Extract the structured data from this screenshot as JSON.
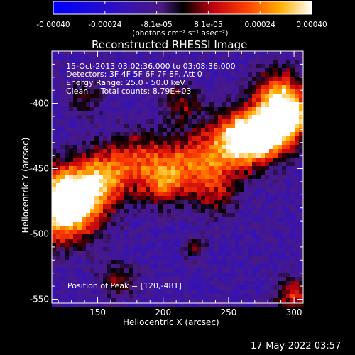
{
  "colorbar": {
    "tick_labels": [
      "-0.00040",
      "-0.00024",
      "-8.1e-05",
      "8.1e-05",
      "0.00024",
      "0.00040"
    ],
    "unit_label": "(photons cm⁻² s⁻¹ asec⁻²)",
    "range": [
      -0.0004,
      0.0004
    ]
  },
  "chart_data": {
    "type": "heatmap",
    "title": "Reconstructed RHESSI Image",
    "xlabel": "Heliocentric X (arcsec)",
    "ylabel": "Heliocentric Y (arcsec)",
    "xlim": [
      115,
      307
    ],
    "ylim": [
      -553,
      -360
    ],
    "x_ticks": [
      "150",
      "200",
      "250",
      "300"
    ],
    "y_ticks": [
      "-400",
      "-450",
      "-500",
      "-550"
    ],
    "x_tick_values": [
      150,
      200,
      250,
      300
    ],
    "y_tick_values": [
      -400,
      -450,
      -500,
      -550
    ],
    "annotations": [
      "15-Oct-2013 03:02:36.000 to 03:08:36.000",
      "Detectors: 3F 4F 5F 6F 7F 8F, Att 0",
      "Energy Range: 25.0 - 50.0 keV",
      "Clean     Total counts: 8.79E+03",
      "Position of Peak = [120,-481]"
    ],
    "peak_position": [
      120,
      -481
    ],
    "colormap": "blue-purple-red-yellow-white"
  },
  "footer": {
    "timestamp": "17-May-2022 03:57"
  }
}
